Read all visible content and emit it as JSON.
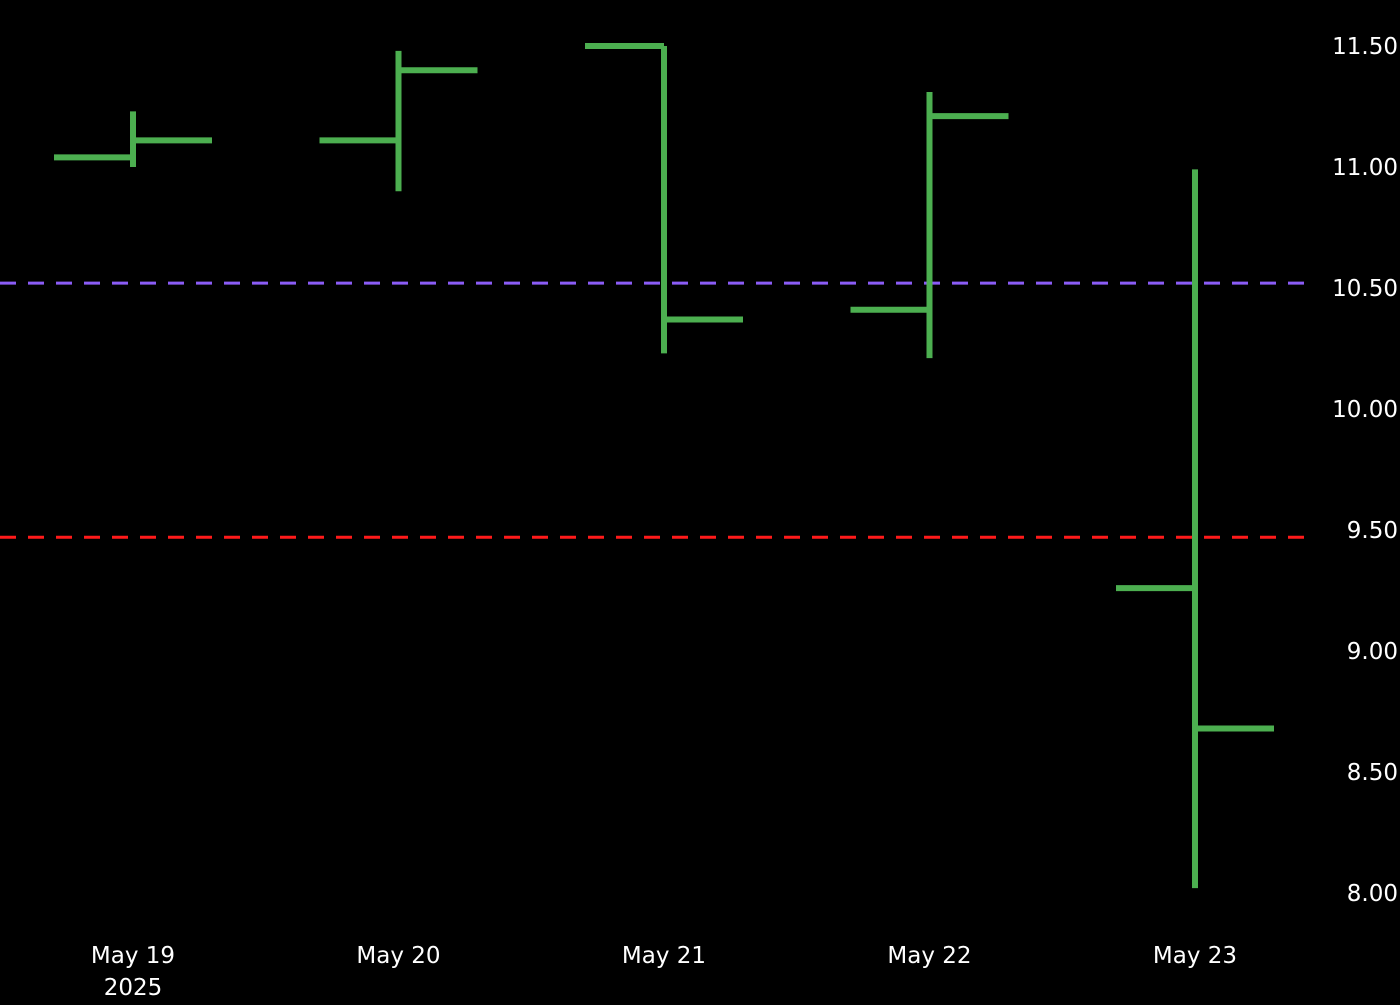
{
  "chart_data": {
    "type": "ohlc",
    "title": "",
    "xlabel": "",
    "ylabel": "",
    "background": "#000000",
    "bar_color": "#4caf50",
    "x_axis": {
      "tick_labels": [
        "May 19",
        "May 20",
        "May 21",
        "May 22",
        "May 23"
      ],
      "year_label": "2025"
    },
    "y_axis": {
      "side": "right",
      "range": [
        7.86,
        11.68
      ],
      "ticks": [
        "8.00",
        "8.50",
        "9.00",
        "9.50",
        "10.00",
        "10.50",
        "11.00",
        "11.50"
      ]
    },
    "grid": false,
    "bars": [
      {
        "date": "May 19",
        "open": 11.04,
        "high": 11.23,
        "low": 11.0,
        "close": 11.11
      },
      {
        "date": "May 20",
        "open": 11.11,
        "high": 11.48,
        "low": 10.9,
        "close": 11.4
      },
      {
        "date": "May 21",
        "open": 11.5,
        "high": 11.5,
        "low": 10.23,
        "close": 10.37
      },
      {
        "date": "May 22",
        "open": 10.41,
        "high": 11.31,
        "low": 10.21,
        "close": 11.21
      },
      {
        "date": "May 23",
        "open": 9.26,
        "high": 10.99,
        "low": 8.02,
        "close": 8.68
      }
    ],
    "reference_lines": [
      {
        "value": 10.52,
        "color": "#8b5cf6",
        "style": "dashed"
      },
      {
        "value": 9.47,
        "color": "#ff1a1a",
        "style": "dashed"
      }
    ]
  }
}
